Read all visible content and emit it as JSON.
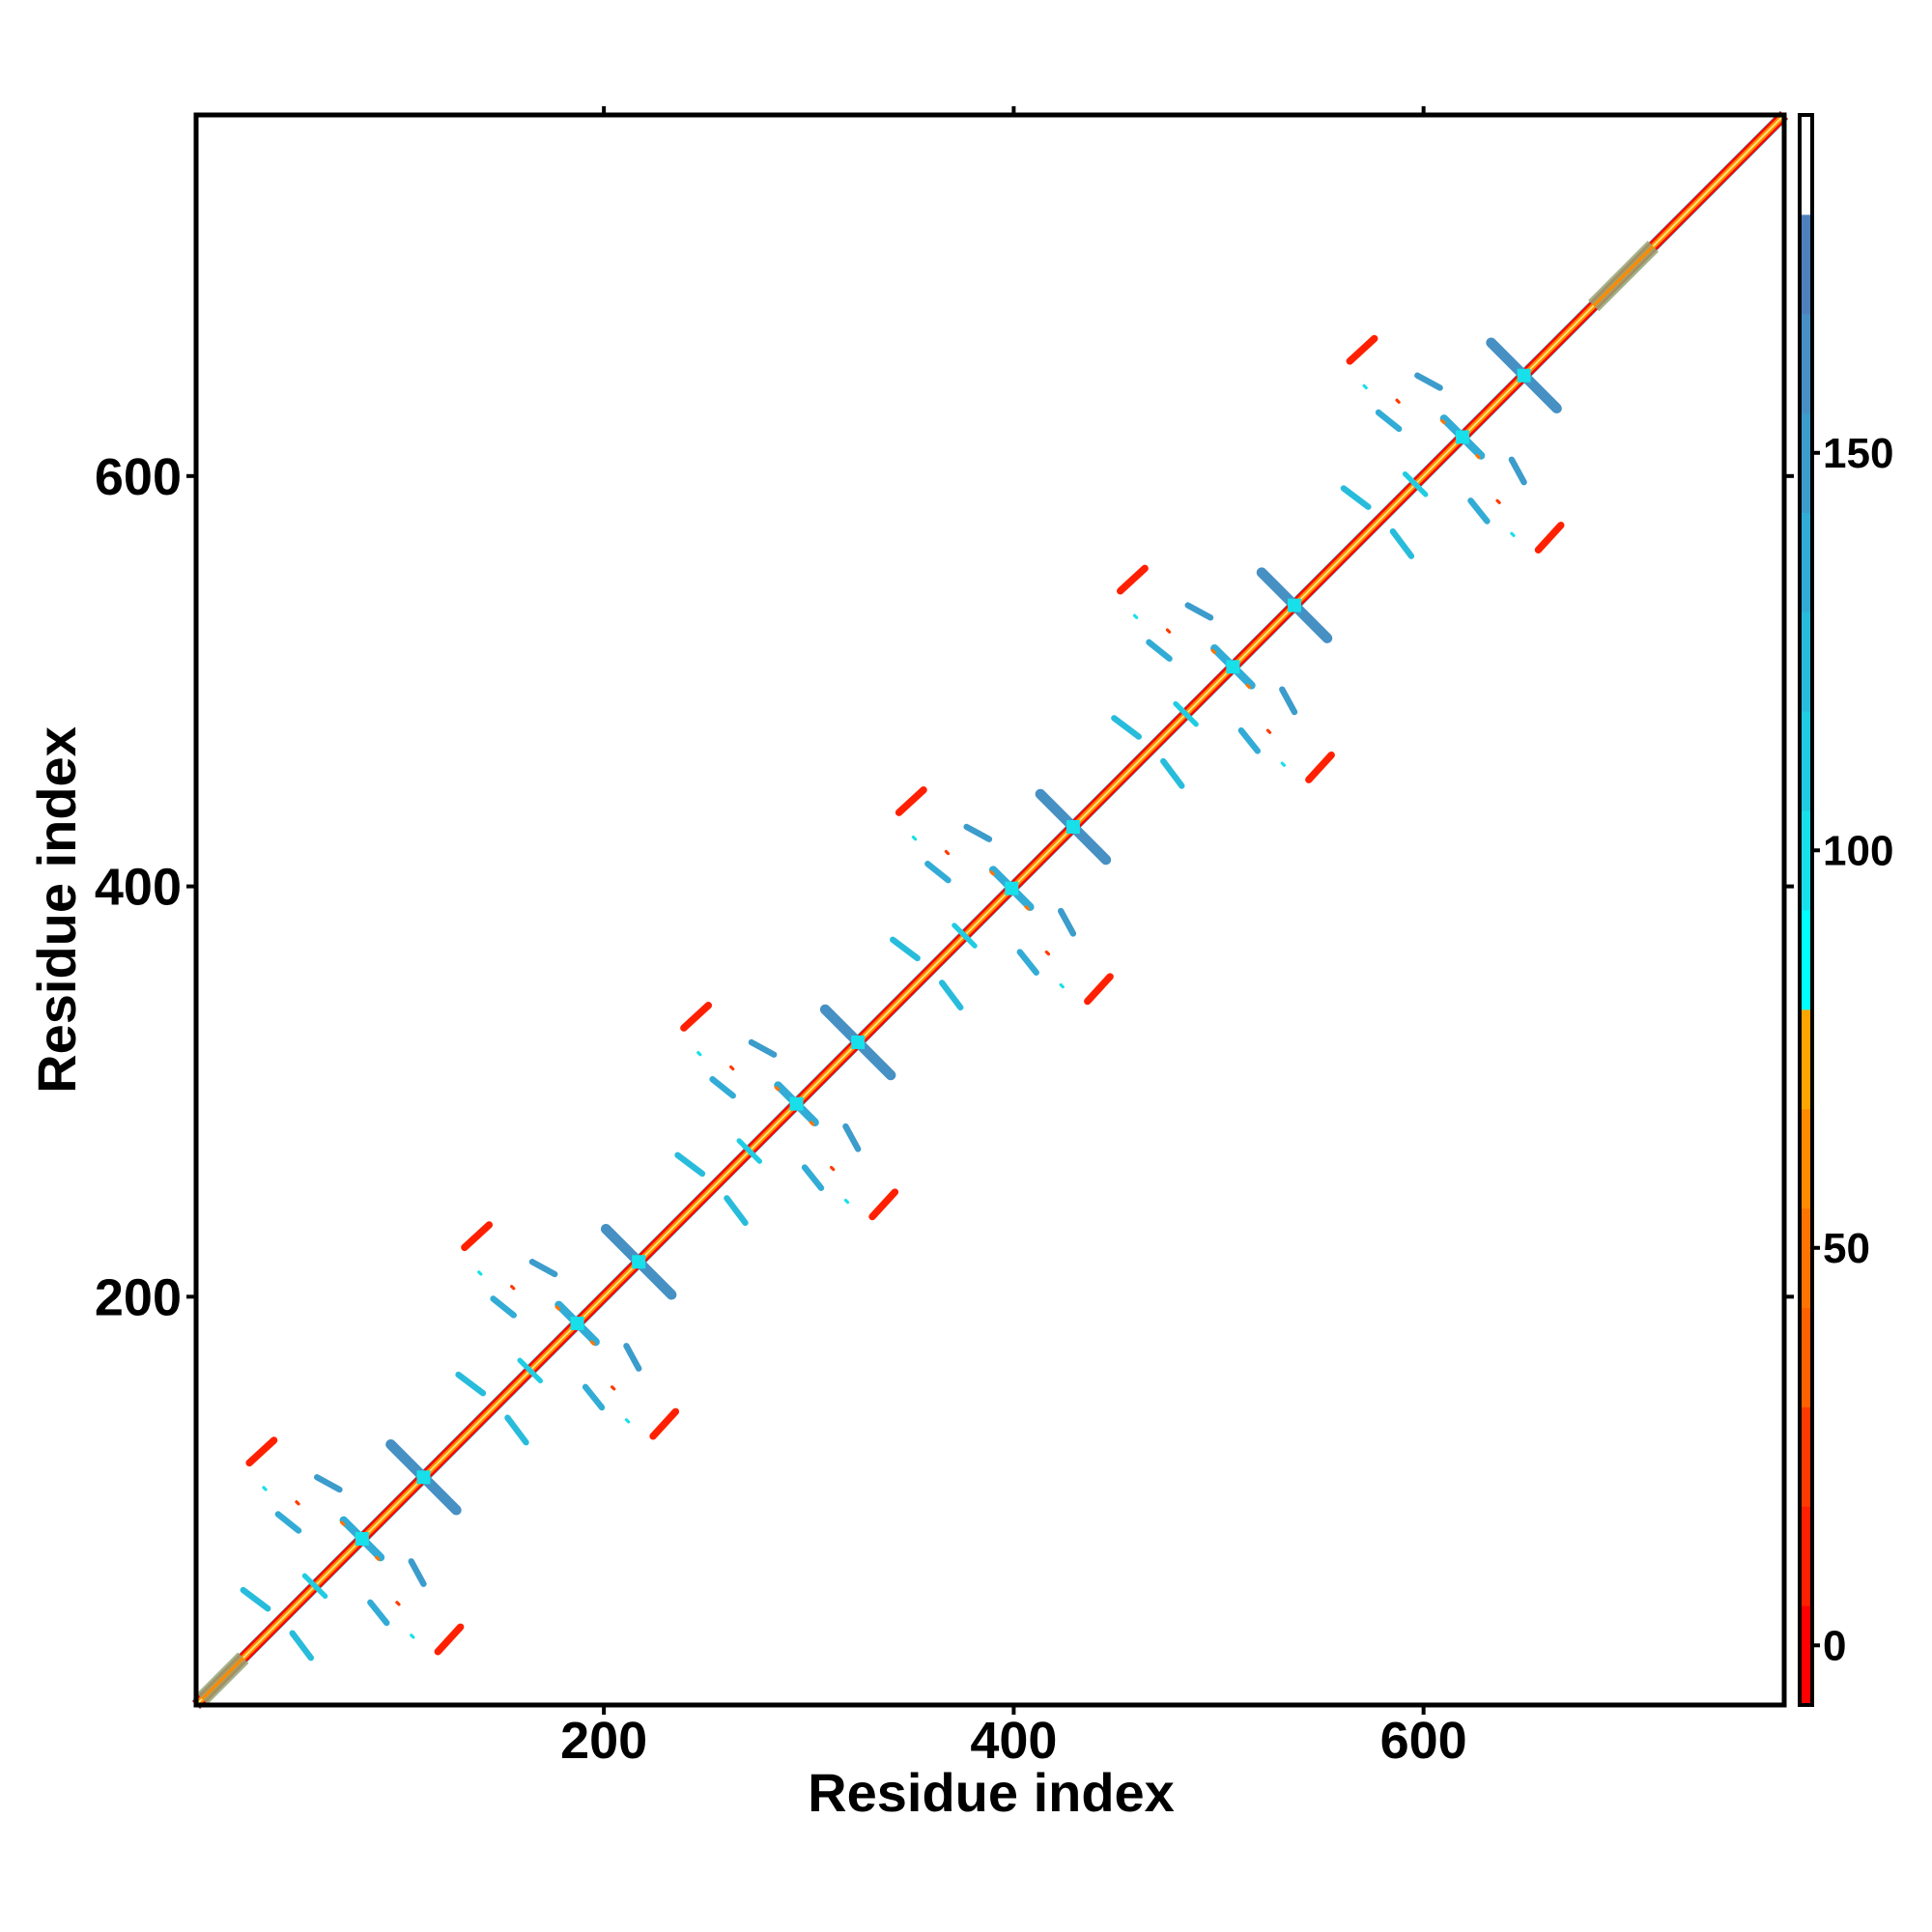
{
  "chart_data": {
    "type": "heatmap",
    "title": "",
    "xlabel": "Residue index",
    "ylabel": "Residue index",
    "xlim": [
      1,
      776
    ],
    "ylim": [
      1,
      776
    ],
    "xticks": [
      200,
      400,
      600
    ],
    "xtick_labels": [
      "200",
      "400",
      "600"
    ],
    "yticks": [
      200,
      400,
      600
    ],
    "ytick_labels": [
      "200",
      "400",
      "600"
    ],
    "grid": false,
    "colorbar": {
      "range": [
        -7.5,
        192.5
      ],
      "bin_width": 12.5,
      "ticks": [
        0,
        50,
        100,
        150
      ],
      "tick_labels": [
        "0",
        "50",
        "100",
        "150"
      ],
      "colors": [
        "#ff0000",
        "#ff2000",
        "#ff3a00",
        "#ff6000",
        "#ff7400",
        "#ff8a00",
        "#ffa500",
        "#00ffff",
        "#18e0ea",
        "#20cce2",
        "#28bcdc",
        "#32acd6",
        "#3c9ccc",
        "#4690c4",
        "#5080bc",
        "#ffffff"
      ]
    },
    "diagonal": {
      "start": 1,
      "end": 776,
      "thick_ranges": [
        [
          4,
          24
        ],
        [
          683,
          712
        ]
      ]
    },
    "symmetric": true,
    "block_centers": [
      112,
      217,
      324,
      429,
      537,
      649
    ],
    "motif": [
      {
        "kind": "cross",
        "x1": -16,
        "y1": 16,
        "x2": 16,
        "y2": -16,
        "value": 165,
        "width": 5
      },
      {
        "kind": "cross",
        "x1": -39,
        "y1": -21,
        "x2": -21,
        "y2": -39,
        "value": 140,
        "width": 4
      },
      {
        "kind": "streak",
        "x1": -85,
        "y1": 7,
        "x2": -73,
        "y2": 18,
        "value": 10,
        "width": 3.5
      },
      {
        "kind": "streak",
        "x1": -71,
        "y1": -18,
        "x2": -61,
        "y2": -26,
        "value": 140,
        "width": 3
      },
      {
        "kind": "streak",
        "x1": -52,
        "y1": 0,
        "x2": -41,
        "y2": -6,
        "value": 150,
        "width": 3
      },
      {
        "kind": "streak",
        "x1": -88,
        "y1": -55,
        "x2": -76,
        "y2": -64,
        "value": 128,
        "width": 3
      },
      {
        "kind": "streak",
        "x1": -58,
        "y1": -48,
        "x2": -51,
        "y2": -55,
        "value": 112,
        "width": 2.5
      },
      {
        "kind": "dot",
        "x1": -40,
        "y1": -22,
        "x2": -39,
        "y2": -23,
        "value": 45,
        "width": 1.5
      },
      {
        "kind": "dot",
        "x1": -62,
        "y1": -12,
        "x2": -61,
        "y2": -13,
        "value": 20,
        "width": 1.5
      },
      {
        "kind": "dot",
        "x1": -78,
        "y1": -5,
        "x2": -77,
        "y2": -6,
        "value": 100,
        "width": 1.5
      }
    ]
  }
}
